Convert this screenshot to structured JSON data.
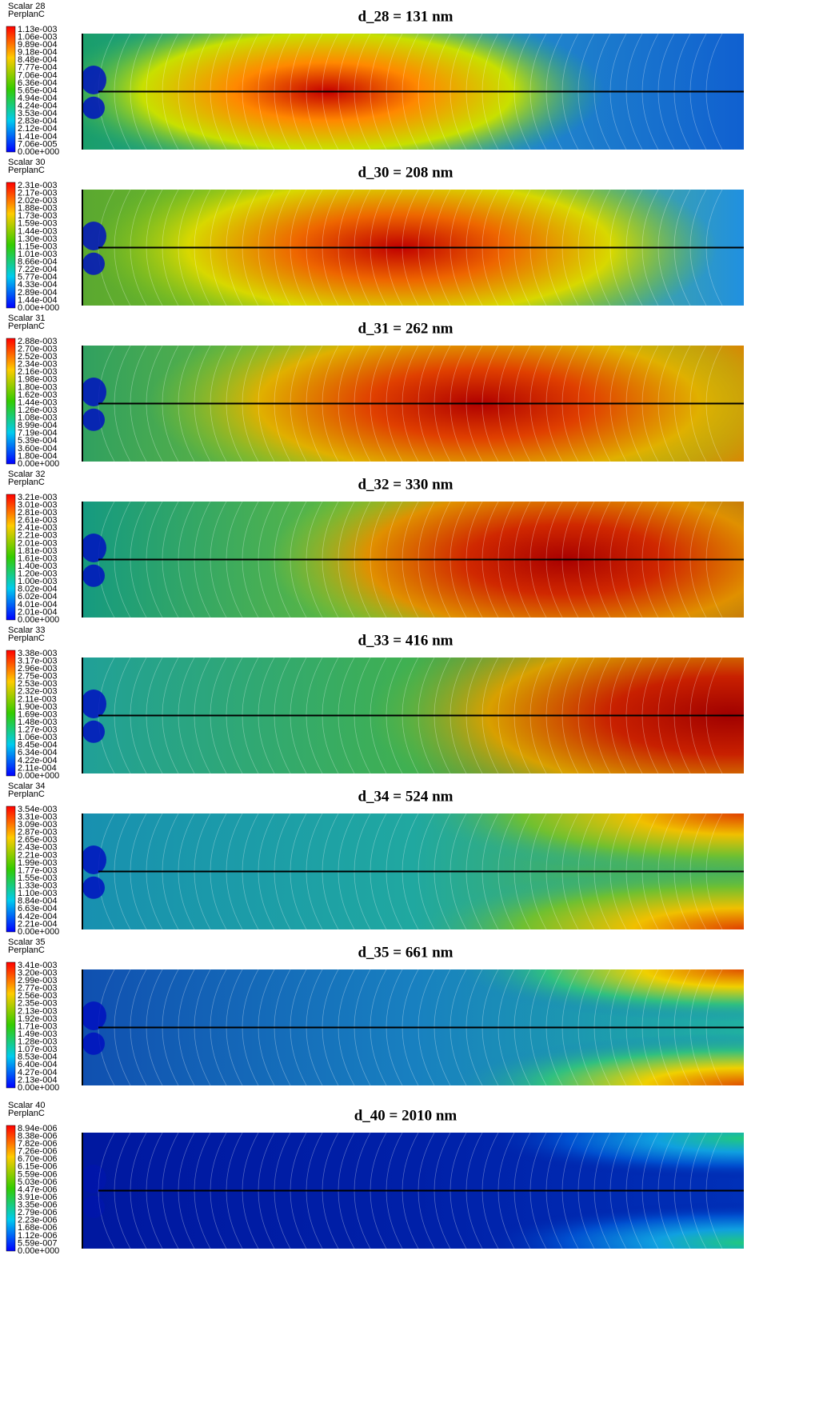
{
  "panels": [
    {
      "scalar": "Scalar 28",
      "quantity": "PerplanC",
      "title": "d_28 = 131 nm",
      "colorbar": [
        "1.13e-003",
        "1.06e-003",
        "9.89e-004",
        "9.18e-004",
        "8.48e-004",
        "7.77e-004",
        "7.06e-004",
        "6.36e-004",
        "5.65e-004",
        "4.94e-004",
        "4.24e-004",
        "3.53e-004",
        "2.83e-004",
        "2.12e-004",
        "1.41e-004",
        "7.06e-005",
        "0.00e+000"
      ]
    },
    {
      "scalar": "Scalar 30",
      "quantity": "PerplanC",
      "title": "d_30 = 208 nm",
      "colorbar": [
        "2.31e-003",
        "2.17e-003",
        "2.02e-003",
        "1.88e-003",
        "1.73e-003",
        "1.59e-003",
        "1.44e-003",
        "1.30e-003",
        "1.15e-003",
        "1.01e-003",
        "8.66e-004",
        "7.22e-004",
        "5.77e-004",
        "4.33e-004",
        "2.89e-004",
        "1.44e-004",
        "0.00e+000"
      ]
    },
    {
      "scalar": "Scalar 31",
      "quantity": "PerplanC",
      "title": "d_31 = 262 nm",
      "colorbar": [
        "2.88e-003",
        "2.70e-003",
        "2.52e-003",
        "2.34e-003",
        "2.16e-003",
        "1.98e-003",
        "1.80e-003",
        "1.62e-003",
        "1.44e-003",
        "1.26e-003",
        "1.08e-003",
        "8.99e-004",
        "7.19e-004",
        "5.39e-004",
        "3.60e-004",
        "1.80e-004",
        "0.00e+000"
      ]
    },
    {
      "scalar": "Scalar 32",
      "quantity": "PerplanC",
      "title": "d_32 = 330 nm",
      "colorbar": [
        "3.21e-003",
        "3.01e-003",
        "2.81e-003",
        "2.61e-003",
        "2.41e-003",
        "2.21e-003",
        "2.01e-003",
        "1.81e-003",
        "1.61e-003",
        "1.40e-003",
        "1.20e-003",
        "1.00e-003",
        "8.02e-004",
        "6.02e-004",
        "4.01e-004",
        "2.01e-004",
        "0.00e+000"
      ]
    },
    {
      "scalar": "Scalar 33",
      "quantity": "PerplanC",
      "title": "d_33 = 416 nm",
      "colorbar": [
        "3.38e-003",
        "3.17e-003",
        "2.96e-003",
        "2.75e-003",
        "2.53e-003",
        "2.32e-003",
        "2.11e-003",
        "1.90e-003",
        "1.69e-003",
        "1.48e-003",
        "1.27e-003",
        "1.06e-003",
        "8.45e-004",
        "6.34e-004",
        "4.22e-004",
        "2.11e-004",
        "0.00e+000"
      ]
    },
    {
      "scalar": "Scalar 34",
      "quantity": "PerplanC",
      "title": "d_34 = 524 nm",
      "colorbar": [
        "3.54e-003",
        "3.31e-003",
        "3.09e-003",
        "2.87e-003",
        "2.65e-003",
        "2.43e-003",
        "2.21e-003",
        "1.99e-003",
        "1.77e-003",
        "1.55e-003",
        "1.33e-003",
        "1.10e-003",
        "8.84e-004",
        "6.63e-004",
        "4.42e-004",
        "2.21e-004",
        "0.00e+000"
      ]
    },
    {
      "scalar": "Scalar 35",
      "quantity": "PerplanC",
      "title": "d_35 = 661 nm",
      "colorbar": [
        "3.41e-003",
        "3.20e-003",
        "2.99e-003",
        "2.77e-003",
        "2.56e-003",
        "2.35e-003",
        "2.13e-003",
        "1.92e-003",
        "1.71e-003",
        "1.49e-003",
        "1.28e-003",
        "1.07e-003",
        "8.53e-004",
        "6.40e-004",
        "4.27e-004",
        "2.13e-004",
        "0.00e+000"
      ]
    },
    {
      "scalar": "Scalar 40",
      "quantity": "PerplanC",
      "title": "d_40 = 2010 nm",
      "colorbar": [
        "8.94e-006",
        "8.38e-006",
        "7.82e-006",
        "7.26e-006",
        "6.70e-006",
        "6.15e-006",
        "5.59e-006",
        "5.03e-006",
        "4.47e-006",
        "3.91e-006",
        "3.35e-006",
        "2.79e-006",
        "2.23e-006",
        "1.68e-006",
        "1.12e-006",
        "5.59e-007",
        "0.00e+000"
      ]
    }
  ]
}
